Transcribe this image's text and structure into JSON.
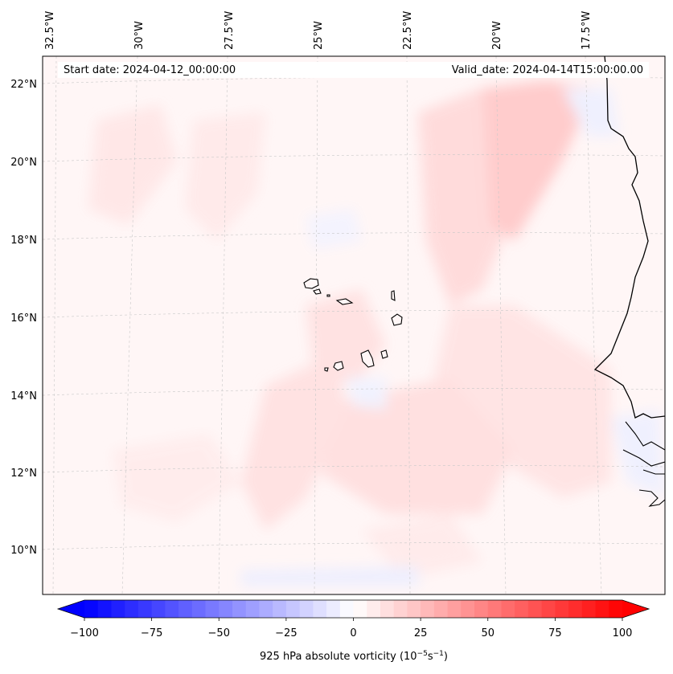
{
  "map": {
    "start_date": "Start date: 2024-04-12_00:00:00",
    "valid_date": "Valid_date: 2024-04-14T15:00:00.00",
    "lon_labels": [
      "32.5°W",
      "30°W",
      "27.5°W",
      "25°W",
      "22.5°W",
      "20°W",
      "17.5°W"
    ],
    "lat_labels": [
      "22°N",
      "20°N",
      "18°N",
      "16°N",
      "14°N",
      "12°N",
      "10°N"
    ],
    "field": "925 hPa absolute vorticity",
    "background_color": "#fff6f6",
    "coastline_color": "#000000"
  },
  "colorbar": {
    "ticks": [
      "−100",
      "−75",
      "−50",
      "−25",
      "0",
      "25",
      "50",
      "75",
      "100"
    ],
    "vmin": -100,
    "vmax": 100,
    "label_prefix": "925 hPa absolute vorticity (10",
    "label_exp1": "−5",
    "label_mid": "s",
    "label_exp2": "−1",
    "label_suffix": ")",
    "neg_color": "#0000ff",
    "pos_color": "#ff0000"
  }
}
